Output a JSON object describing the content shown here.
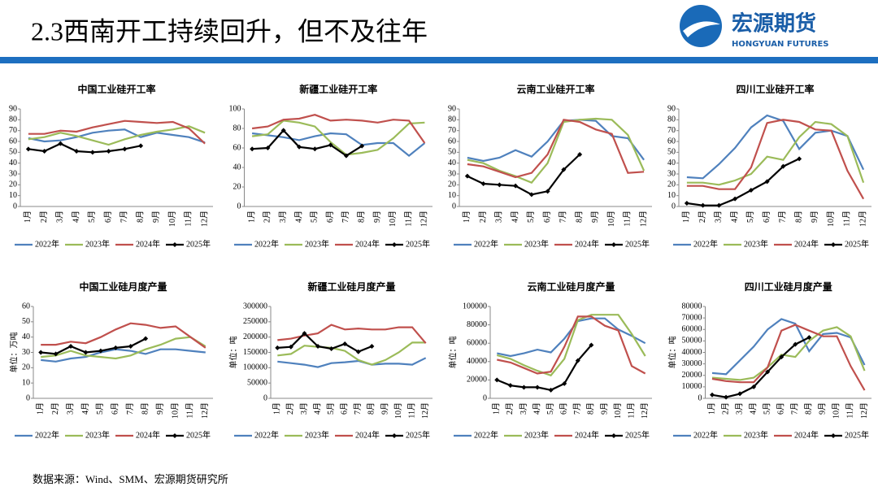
{
  "header": {
    "title": "2.3西南开工持续回升，但不及往年",
    "logo": "宏源期货",
    "logo_en": "HONGYUAN FUTURES"
  },
  "source": "数据来源：Wind、SMM、宏源期货研究所",
  "chart_data": [
    {
      "type": "line",
      "title": "中国工业硅开工率",
      "categories": [
        "1月",
        "2月",
        "3月",
        "4月",
        "5月",
        "6月",
        "7月",
        "8月",
        "9月",
        "10月",
        "11月",
        "12月"
      ],
      "ylim": [
        0,
        90
      ],
      "yticks": [
        0,
        10,
        20,
        30,
        40,
        50,
        60,
        70,
        80,
        90
      ],
      "series": [
        {
          "name": "2022年",
          "color": "#4f81bd",
          "values": [
            63,
            60,
            61,
            64,
            68,
            70,
            71,
            64,
            68,
            66,
            64,
            59
          ]
        },
        {
          "name": "2023年",
          "color": "#9bbb59",
          "values": [
            62,
            64,
            68,
            65,
            61,
            57,
            62,
            66,
            69,
            71,
            74,
            68
          ]
        },
        {
          "name": "2024年",
          "color": "#c0504d",
          "values": [
            67,
            67,
            70,
            69,
            73,
            76,
            79,
            78,
            77,
            78,
            72,
            58
          ]
        },
        {
          "name": "2025年",
          "color": "#000000",
          "values": [
            53,
            51,
            58,
            51,
            50,
            51,
            53,
            56,
            null,
            null,
            null,
            null
          ]
        }
      ]
    },
    {
      "type": "line",
      "title": "新疆工业硅开工率",
      "categories": [
        "1月",
        "2月",
        "3月",
        "4月",
        "5月",
        "6月",
        "7月",
        "8月",
        "9月",
        "10月",
        "11月",
        "12月"
      ],
      "ylim": [
        0,
        100
      ],
      "yticks": [
        0,
        20,
        40,
        60,
        80,
        100
      ],
      "series": [
        {
          "name": "2022年",
          "color": "#4f81bd",
          "values": [
            75,
            73,
            71,
            68,
            72,
            75,
            74,
            63,
            65,
            65,
            52,
            65
          ]
        },
        {
          "name": "2023年",
          "color": "#9bbb59",
          "values": [
            72,
            74,
            88,
            86,
            82,
            66,
            53,
            55,
            58,
            70,
            85,
            86
          ]
        },
        {
          "name": "2024年",
          "color": "#c0504d",
          "values": [
            80,
            82,
            89,
            90,
            94,
            88,
            89,
            88,
            86,
            89,
            88,
            65
          ]
        },
        {
          "name": "2025年",
          "color": "#000000",
          "values": [
            59,
            60,
            78,
            61,
            59,
            63,
            52,
            62,
            null,
            null,
            null,
            null
          ]
        }
      ]
    },
    {
      "type": "line",
      "title": "云南工业硅开工率",
      "categories": [
        "1月",
        "2月",
        "3月",
        "4月",
        "5月",
        "6月",
        "7月",
        "8月",
        "9月",
        "10月",
        "11月",
        "12月"
      ],
      "ylim": [
        0,
        90
      ],
      "yticks": [
        0,
        10,
        20,
        30,
        40,
        50,
        60,
        70,
        80,
        90
      ],
      "series": [
        {
          "name": "2022年",
          "color": "#4f81bd",
          "values": [
            45,
            42,
            45,
            52,
            46,
            60,
            79,
            80,
            79,
            65,
            63,
            43
          ]
        },
        {
          "name": "2023年",
          "color": "#9bbb59",
          "values": [
            43,
            40,
            33,
            28,
            22,
            40,
            78,
            80,
            81,
            80,
            66,
            33
          ]
        },
        {
          "name": "2024年",
          "color": "#c0504d",
          "values": [
            39,
            37,
            32,
            27,
            31,
            48,
            80,
            78,
            71,
            67,
            31,
            32
          ]
        },
        {
          "name": "2025年",
          "color": "#000000",
          "values": [
            28,
            21,
            20,
            19,
            11,
            14,
            34,
            48,
            null,
            null,
            null,
            null
          ]
        }
      ]
    },
    {
      "type": "line",
      "title": "四川工业硅开工率",
      "categories": [
        "1月",
        "2月",
        "3月",
        "4月",
        "5月",
        "6月",
        "7月",
        "8月",
        "9月",
        "10月",
        "11月",
        "12月"
      ],
      "ylim": [
        0,
        90
      ],
      "yticks": [
        0,
        10,
        20,
        30,
        40,
        50,
        60,
        70,
        80,
        90
      ],
      "series": [
        {
          "name": "2022年",
          "color": "#4f81bd",
          "values": [
            27,
            26,
            39,
            54,
            73,
            84,
            79,
            53,
            68,
            70,
            65,
            34
          ]
        },
        {
          "name": "2023年",
          "color": "#9bbb59",
          "values": [
            22,
            22,
            20,
            24,
            30,
            46,
            43,
            64,
            78,
            76,
            65,
            22
          ]
        },
        {
          "name": "2024年",
          "color": "#c0504d",
          "values": [
            19,
            19,
            16,
            16,
            36,
            77,
            80,
            78,
            71,
            70,
            33,
            7
          ]
        },
        {
          "name": "2025年",
          "color": "#000000",
          "values": [
            3,
            1,
            1,
            7,
            15,
            23,
            37,
            44,
            null,
            null,
            null,
            null
          ]
        }
      ]
    },
    {
      "type": "line",
      "title": "中国工业硅月度产量",
      "ylabel": "单位：万吨",
      "categories": [
        "1月",
        "2月",
        "3月",
        "4月",
        "5月",
        "6月",
        "7月",
        "8月",
        "9月",
        "10月",
        "11月",
        "12月"
      ],
      "ylim": [
        0,
        60
      ],
      "yticks": [
        0,
        10,
        20,
        30,
        40,
        50,
        60
      ],
      "series": [
        {
          "name": "2022年",
          "color": "#4f81bd",
          "values": [
            25,
            24,
            26,
            27,
            30,
            32,
            31,
            29,
            32,
            32,
            31,
            30
          ]
        },
        {
          "name": "2023年",
          "color": "#9bbb59",
          "values": [
            27,
            28,
            31,
            28,
            27,
            26,
            28,
            32,
            35,
            39,
            40,
            34
          ]
        },
        {
          "name": "2024年",
          "color": "#c0504d",
          "values": [
            35,
            35,
            37,
            36,
            40,
            45,
            49,
            48,
            46,
            47,
            40,
            33
          ]
        },
        {
          "name": "2025年",
          "color": "#000000",
          "values": [
            30,
            29,
            34,
            30,
            31,
            33,
            34,
            39,
            null,
            null,
            null,
            null
          ]
        }
      ]
    },
    {
      "type": "line",
      "title": "新疆工业硅月度产量",
      "ylabel": "单位：吨",
      "categories": [
        "1月",
        "2月",
        "3月",
        "4月",
        "5月",
        "6月",
        "7月",
        "8月",
        "9月",
        "10月",
        "11月",
        "12月"
      ],
      "ylim": [
        0,
        300000
      ],
      "yticks": [
        0,
        50000,
        100000,
        150000,
        200000,
        250000,
        300000
      ],
      "series": [
        {
          "name": "2022年",
          "color": "#4f81bd",
          "values": [
            120000,
            115000,
            110000,
            102000,
            115000,
            118000,
            122000,
            110000,
            113000,
            113000,
            110000,
            132000
          ]
        },
        {
          "name": "2023年",
          "color": "#9bbb59",
          "values": [
            140000,
            145000,
            172000,
            168000,
            165000,
            155000,
            125000,
            110000,
            125000,
            150000,
            182000,
            182000
          ]
        },
        {
          "name": "2024年",
          "color": "#c0504d",
          "values": [
            190000,
            195000,
            205000,
            212000,
            240000,
            225000,
            228000,
            225000,
            225000,
            232000,
            232000,
            180000
          ]
        },
        {
          "name": "2025年",
          "color": "#000000",
          "values": [
            165000,
            168000,
            212000,
            170000,
            162000,
            178000,
            152000,
            170000,
            null,
            null,
            null,
            null
          ]
        }
      ]
    },
    {
      "type": "line",
      "title": "云南工业硅月度产量",
      "ylabel": "单位：吨",
      "categories": [
        "1月",
        "2月",
        "3月",
        "4月",
        "5月",
        "6月",
        "7月",
        "8月",
        "9月",
        "10月",
        "11月",
        "12月"
      ],
      "ylim": [
        0,
        100000
      ],
      "yticks": [
        0,
        20000,
        40000,
        60000,
        80000,
        100000
      ],
      "series": [
        {
          "name": "2022年",
          "color": "#4f81bd",
          "values": [
            49000,
            46000,
            49000,
            53000,
            50000,
            65000,
            84000,
            87000,
            87000,
            75000,
            68000,
            60000
          ]
        },
        {
          "name": "2023年",
          "color": "#9bbb59",
          "values": [
            47000,
            43000,
            36000,
            30000,
            25000,
            43000,
            85000,
            91000,
            91000,
            91000,
            70000,
            46000
          ]
        },
        {
          "name": "2024年",
          "color": "#c0504d",
          "values": [
            42000,
            39000,
            33000,
            27000,
            29000,
            56000,
            89000,
            89000,
            79000,
            74000,
            35000,
            27000
          ]
        },
        {
          "name": "2025年",
          "color": "#000000",
          "values": [
            20000,
            14000,
            12000,
            12000,
            9000,
            16000,
            41000,
            58000,
            null,
            null,
            null,
            null
          ]
        }
      ]
    },
    {
      "type": "line",
      "title": "四川工业硅月度产量",
      "ylabel": "单位：吨",
      "categories": [
        "1月",
        "2月",
        "3月",
        "4月",
        "5月",
        "6月",
        "7月",
        "8月",
        "9月",
        "10月",
        "11月",
        "12月"
      ],
      "ylim": [
        0,
        80000
      ],
      "yticks": [
        0,
        10000,
        20000,
        30000,
        40000,
        50000,
        60000,
        70000,
        80000
      ],
      "series": [
        {
          "name": "2022年",
          "color": "#4f81bd",
          "values": [
            22000,
            21000,
            33000,
            45000,
            60000,
            69000,
            65000,
            41000,
            56000,
            57000,
            53000,
            29000
          ]
        },
        {
          "name": "2023年",
          "color": "#9bbb59",
          "values": [
            18000,
            17000,
            16000,
            18000,
            27000,
            38000,
            36000,
            50000,
            59000,
            62000,
            54000,
            24000
          ]
        },
        {
          "name": "2024年",
          "color": "#c0504d",
          "values": [
            17000,
            15000,
            14000,
            14000,
            27000,
            59000,
            64000,
            59000,
            54000,
            54000,
            28000,
            7000
          ]
        },
        {
          "name": "2025年",
          "color": "#000000",
          "values": [
            3000,
            1000,
            4000,
            10000,
            23000,
            36000,
            47000,
            53000,
            null,
            null,
            null,
            null
          ]
        }
      ]
    }
  ]
}
